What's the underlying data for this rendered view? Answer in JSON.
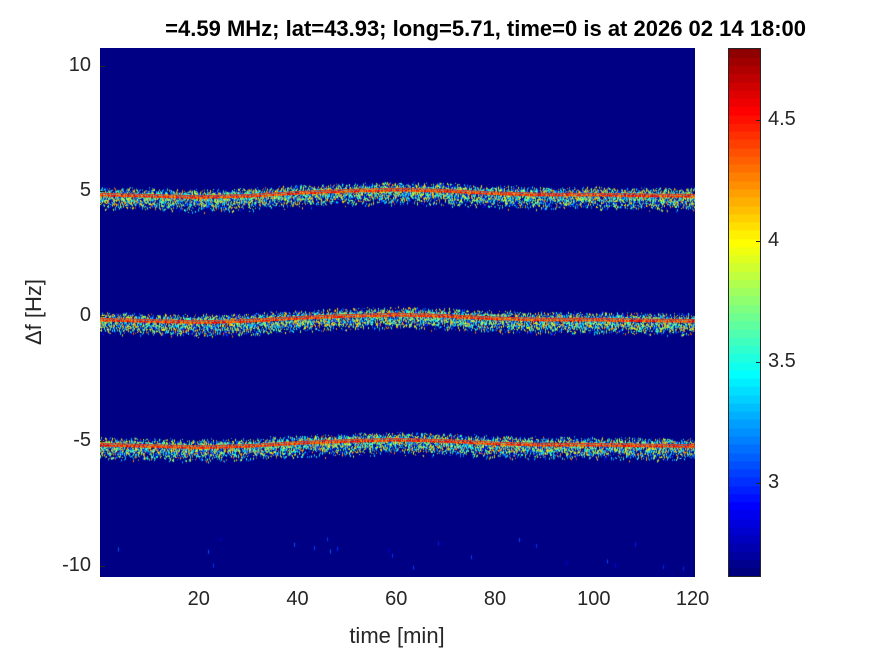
{
  "chart_data": {
    "type": "heatmap",
    "title": "=4.59 MHz;  lat=43.93; long=5.71, time=0 is at 2026 02 14 18:00",
    "xlabel": "time [min]",
    "ylabel": "Δf [Hz]",
    "xlim": [
      0,
      120.5
    ],
    "ylim": [
      -10.45,
      10.7
    ],
    "xticks": [
      "20",
      "40",
      "60",
      "80",
      "100",
      "120"
    ],
    "yticks": [
      "10",
      "5",
      "0",
      "-5",
      "-10"
    ],
    "colormap": "jet",
    "colorbar": {
      "clim": [
        2.61,
        4.8
      ],
      "ticks": [
        "3",
        "3.5",
        "4",
        "4.5"
      ]
    },
    "background_value": 2.62,
    "bands": [
      {
        "nominal_hz": 5
      },
      {
        "nominal_hz": 0
      },
      {
        "nominal_hz": -5
      }
    ],
    "band_drift": {
      "time": [
        0,
        10,
        20,
        30,
        40,
        50,
        60,
        70,
        80,
        90,
        100,
        110,
        120
      ],
      "offset_hz": [
        -0.15,
        -0.2,
        -0.25,
        -0.2,
        -0.08,
        0.0,
        0.05,
        0.0,
        -0.1,
        -0.15,
        -0.15,
        -0.18,
        -0.2
      ]
    },
    "grid": false
  }
}
